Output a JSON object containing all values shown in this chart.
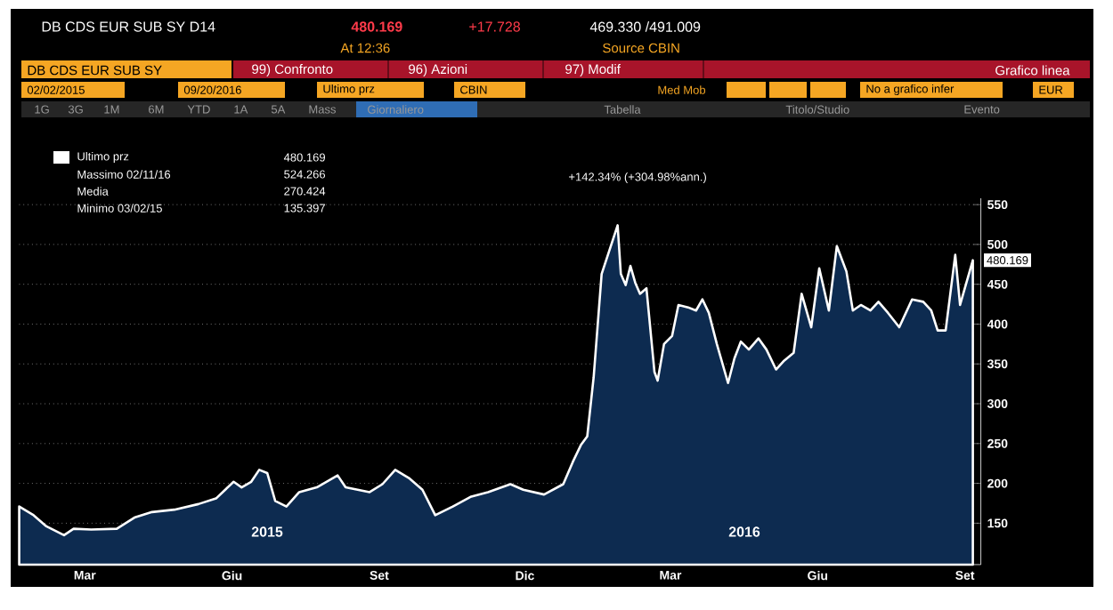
{
  "chart_data": {
    "type": "area",
    "title": "DB CDS EUR SUB SY D14",
    "x": [
      "2015-02-02",
      "2015-02-11",
      "2015-02-19",
      "2015-03-02",
      "2015-03-08",
      "2015-03-19",
      "2015-04-04",
      "2015-04-15",
      "2015-04-26",
      "2015-05-10",
      "2015-05-25",
      "2015-06-05",
      "2015-06-16",
      "2015-06-21",
      "2015-06-27",
      "2015-07-02",
      "2015-07-07",
      "2015-07-12",
      "2015-07-19",
      "2015-07-27",
      "2015-08-07",
      "2015-08-20",
      "2015-08-25",
      "2015-09-09",
      "2015-09-17",
      "2015-09-25",
      "2015-10-04",
      "2015-10-12",
      "2015-10-20",
      "2015-10-31",
      "2015-11-11",
      "2015-11-22",
      "2015-12-06",
      "2015-12-14",
      "2015-12-27",
      "2016-01-08",
      "2016-01-14",
      "2016-01-19",
      "2016-01-23",
      "2016-01-27",
      "2016-02-01",
      "2016-02-11",
      "2016-02-13",
      "2016-02-16",
      "2016-02-19",
      "2016-02-22",
      "2016-02-25",
      "2016-02-29",
      "2016-03-05",
      "2016-03-07",
      "2016-03-11",
      "2016-03-16",
      "2016-03-20",
      "2016-03-26",
      "2016-03-31",
      "2016-04-04",
      "2016-04-08",
      "2016-04-13",
      "2016-04-20",
      "2016-04-24",
      "2016-04-28",
      "2016-05-03",
      "2016-05-09",
      "2016-05-14",
      "2016-05-20",
      "2016-05-25",
      "2016-05-31",
      "2016-06-05",
      "2016-06-11",
      "2016-06-16",
      "2016-06-22",
      "2016-06-27",
      "2016-07-03",
      "2016-07-07",
      "2016-07-12",
      "2016-07-18",
      "2016-07-23",
      "2016-07-29",
      "2016-08-05",
      "2016-08-13",
      "2016-08-20",
      "2016-08-25",
      "2016-08-29",
      "2016-09-03",
      "2016-09-09",
      "2016-09-12",
      "2016-09-20"
    ],
    "series": [
      {
        "name": "Ultimo prz",
        "color": "#ffffff",
        "values": [
          171,
          160,
          146,
          135,
          143,
          142,
          143,
          157,
          164,
          167,
          174,
          181,
          202,
          195,
          202,
          217,
          213,
          178,
          171,
          189,
          195,
          210,
          195,
          189,
          199,
          217,
          206,
          192,
          160,
          171,
          183,
          189,
          199,
          192,
          186,
          199,
          227,
          248,
          259,
          333,
          463,
          524,
          463,
          449,
          473,
          452,
          438,
          445,
          340,
          329,
          375,
          385,
          424,
          421,
          417,
          431,
          414,
          375,
          326,
          357,
          378,
          368,
          382,
          368,
          343,
          354,
          364,
          438,
          396,
          470,
          417,
          498,
          466,
          417,
          424,
          417,
          428,
          414,
          396,
          431,
          428,
          417,
          392,
          392,
          487,
          424,
          480.169
        ]
      }
    ],
    "xlim": [
      "2015-02-02",
      "2016-09-25"
    ],
    "xticks": [
      {
        "value": "2015-03-15",
        "label": "Mar"
      },
      {
        "value": "2015-06-15",
        "label": "Giu"
      },
      {
        "value": "2015-09-15",
        "label": "Set"
      },
      {
        "value": "2015-12-15",
        "label": "Dic"
      },
      {
        "value": "2016-03-15",
        "label": "Mar"
      },
      {
        "value": "2016-06-15",
        "label": "Giu"
      },
      {
        "value": "2016-09-15",
        "label": "Set"
      }
    ],
    "ylim": [
      98,
      558
    ],
    "yticks": [
      150,
      200,
      250,
      300,
      350,
      400,
      450,
      500,
      550
    ],
    "grid": "y",
    "legend": "top left",
    "annotations": [
      "+142.34% (+304.98%ann.)",
      {
        "text": "480.169",
        "x": "2016-09-20",
        "y": 480.169
      },
      "480.169",
      "Massimo 02/11/16",
      "524.266",
      "Media",
      "270.424",
      "Minimo 03/02/15",
      "135.397",
      "2015",
      "2016",
      "480.169",
      "+17.728",
      "469.330 /491.009",
      "At 12:36",
      "Source CBIN",
      "DB CDS EUR SUB SY",
      "99) Confronto",
      "96) Azioni",
      "97) Modif",
      "Grafico linea",
      "02/02/2015",
      "09/20/2016",
      "Ultimo prz",
      "CBIN",
      "Med Mob",
      "No a grafico infer",
      "EUR",
      "1G",
      "3G",
      "1M",
      "6M",
      "YTD",
      "1A",
      "5A",
      "Mass",
      "Giornaliero",
      "Tabella",
      "Titolo/Studio",
      "Evento"
    ]
  }
}
